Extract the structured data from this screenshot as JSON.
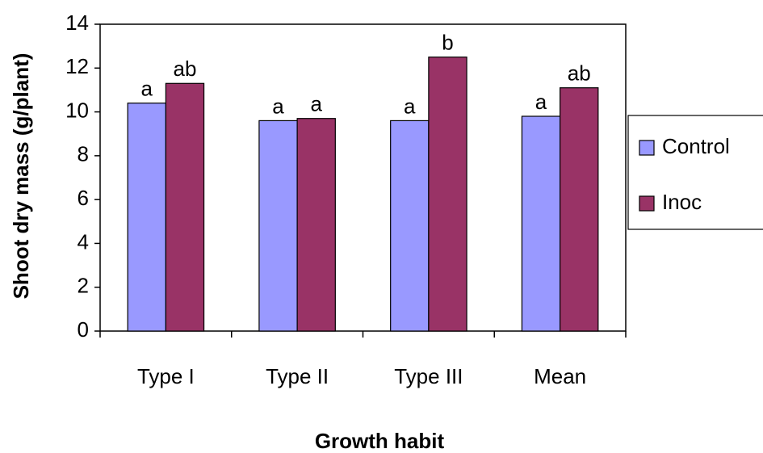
{
  "chart_data": {
    "type": "bar",
    "x_label": "Growth habit",
    "y_label": "Shoot dry mass (g/plant)",
    "categories": [
      "Type I",
      "Type II",
      "Type III",
      "Mean"
    ],
    "series": [
      {
        "name": "Control",
        "color": "#9999ff",
        "values": [
          10.4,
          9.6,
          9.6,
          9.8
        ],
        "letters": [
          "a",
          "a",
          "a",
          "a"
        ]
      },
      {
        "name": "Inoc",
        "color": "#993366",
        "values": [
          11.3,
          9.7,
          12.5,
          11.1
        ],
        "letters": [
          "ab",
          "a",
          "b",
          "ab"
        ]
      }
    ],
    "ylim": [
      0,
      14
    ],
    "yticks": [
      0,
      2,
      4,
      6,
      8,
      10,
      12,
      14
    ],
    "legend": "right"
  }
}
